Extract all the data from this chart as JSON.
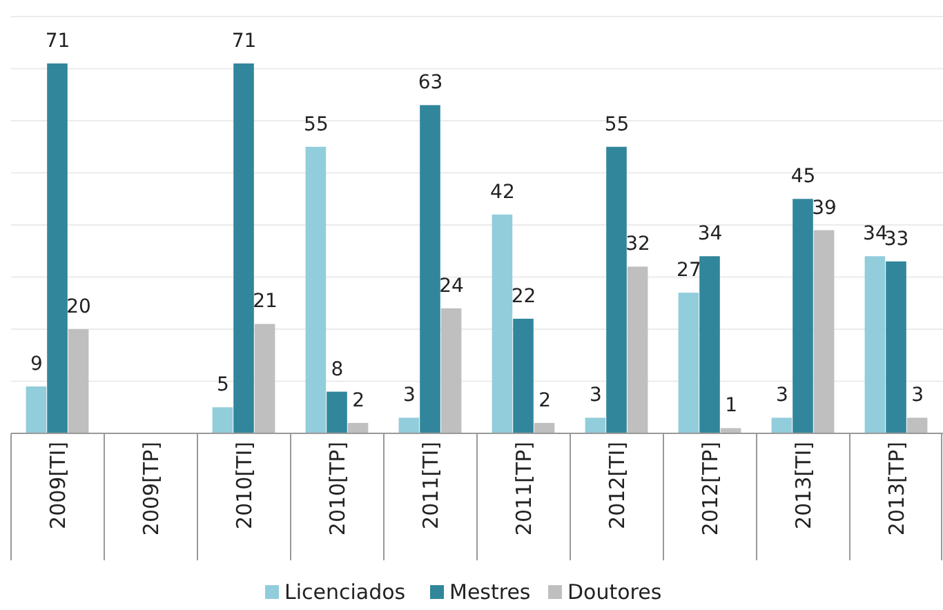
{
  "chart_data": {
    "type": "bar",
    "categories": [
      "2009[TI]",
      "2009[TP]",
      "2010[TI]",
      "2010[TP]",
      "2011[TI]",
      "2011[TP]",
      "2012[TI]",
      "2012[TP]",
      "2013[TI]",
      "2013[TP]"
    ],
    "series": [
      {
        "name": "Licenciados",
        "color": "#92cddc",
        "values": [
          9,
          null,
          5,
          55,
          3,
          42,
          3,
          27,
          3,
          34
        ]
      },
      {
        "name": "Mestres",
        "color": "#31869b",
        "values": [
          71,
          null,
          71,
          8,
          63,
          22,
          55,
          34,
          45,
          33
        ]
      },
      {
        "name": "Doutores",
        "color": "#bfbfbf",
        "values": [
          20,
          null,
          21,
          2,
          24,
          2,
          32,
          1,
          39,
          3
        ]
      }
    ],
    "ylim": [
      0,
      80
    ],
    "yticks": [
      {
        "value": 0,
        "label": null
      },
      {
        "value": 10,
        "label": null
      },
      {
        "value": 20,
        "label": null
      },
      {
        "value": 30,
        "label": null
      },
      {
        "value": 40,
        "label": null
      },
      {
        "value": 50,
        "label": null
      },
      {
        "value": 60,
        "label": null
      },
      {
        "value": 70,
        "label": null
      },
      {
        "value": 80,
        "label": null
      }
    ],
    "tick_labels": "x",
    "grid": "y",
    "data_labels": true,
    "legend": "bottom"
  }
}
